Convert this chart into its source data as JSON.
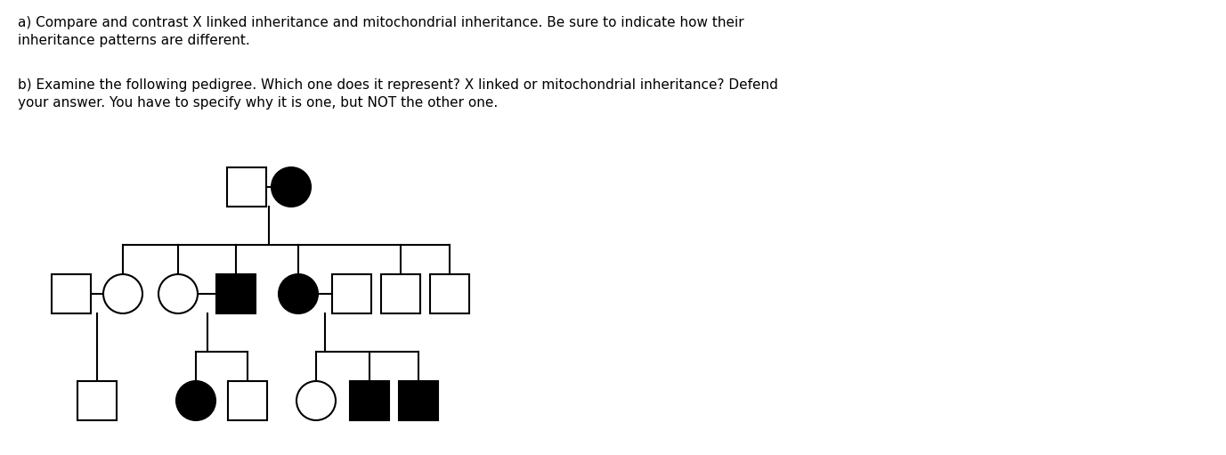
{
  "text_lines_a": "a) Compare and contrast X linked inheritance and mitochondrial inheritance. Be sure to indicate how their\ninheritance patterns are different.",
  "text_lines_b": "b) Examine the following pedigree. Which one does it represent? X linked or mitochondrial inheritance? Defend\nyour answer. You have to specify why it is one, but NOT the other one.",
  "background_color": "#ffffff",
  "line_color": "#000000",
  "text_color": "#000000",
  "text_fontsize": 11.0,
  "line_width": 1.5,
  "fig_width": 13.77,
  "fig_height": 5.11,
  "dpi": 100
}
